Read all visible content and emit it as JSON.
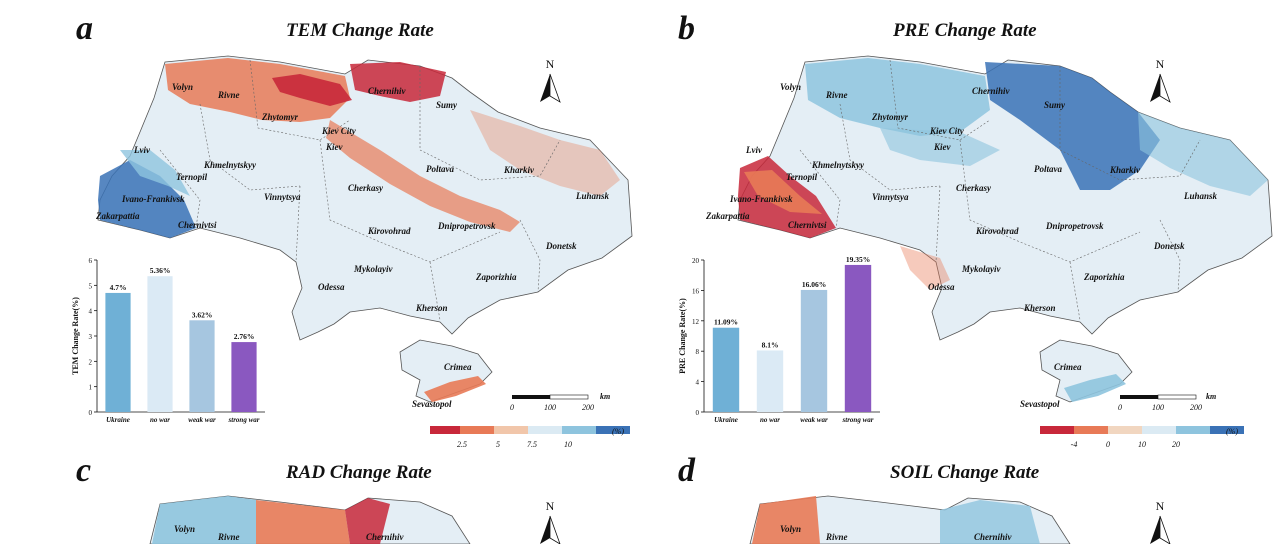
{
  "panels": [
    {
      "letter": "a",
      "title": "TEM Change Rate",
      "north": "N",
      "scale": {
        "unit": "km",
        "ticks": [
          "0",
          "100",
          "200"
        ]
      },
      "legend": {
        "unit": "(%)",
        "ticks": [
          "2.5",
          "5",
          "7.5",
          "10"
        ],
        "colors": [
          "#c8283a",
          "#e87a57",
          "#f1c6aa",
          "#dbeaf3",
          "#8ec4de",
          "#3a72b6"
        ]
      },
      "places": [
        "Volyn",
        "Rivne",
        "Zhytomyr",
        "Chernihiv",
        "Sumy",
        "Kiev City",
        "Kiev",
        "Lviv",
        "Khmelnytskyy",
        "Ternopil",
        "Poltava",
        "Kharkiv",
        "Ivano-Frankivsk",
        "Vinnytsya",
        "Cherkasy",
        "Luhansk",
        "Zakarpattia",
        "Chernivtsi",
        "Kirovohrad",
        "Dnipropetrovsk",
        "Donetsk",
        "Mykolayiv",
        "Zaporizhia",
        "Odessa",
        "Kherson",
        "Crimea",
        "Sevastopol"
      ]
    },
    {
      "letter": "b",
      "title": "PRE Change Rate",
      "north": "N",
      "scale": {
        "unit": "km",
        "ticks": [
          "0",
          "100",
          "200"
        ]
      },
      "legend": {
        "unit": "(%)",
        "ticks": [
          "-4",
          "0",
          "10",
          "20"
        ],
        "colors": [
          "#c8283a",
          "#e87a57",
          "#f1d6c0",
          "#dbeaf3",
          "#8ec4de",
          "#3a72b6"
        ]
      },
      "places": [
        "Volyn",
        "Rivne",
        "Zhytomyr",
        "Chernihiv",
        "Sumy",
        "Kiev City",
        "Kiev",
        "Lviv",
        "Khmelnytskyy",
        "Ternopil",
        "Poltava",
        "Kharkiv",
        "Ivano-Frankivsk",
        "Vinnytsya",
        "Cherkasy",
        "Luhansk",
        "Zakarpattia",
        "Chernivtsi",
        "Kirovohrad",
        "Dnipropetrovsk",
        "Donetsk",
        "Mykolayiv",
        "Zaporizhia",
        "Odessa",
        "Kherson",
        "Crimea",
        "Sevastopol"
      ]
    },
    {
      "letter": "c",
      "title": "RAD Change Rate",
      "north": "N",
      "places": [
        "Volyn",
        "Rivne",
        "Chernihiv"
      ]
    },
    {
      "letter": "d",
      "title": "SOIL Change Rate",
      "north": "N",
      "places": [
        "Volyn",
        "Rivne",
        "Chernihiv"
      ]
    }
  ],
  "chart_data": [
    {
      "type": "bar",
      "title": "",
      "xlabel": "",
      "ylabel": "TEM Change Rate(%)",
      "categories": [
        "Ukraine",
        "no war",
        "weak war",
        "strong war"
      ],
      "values": [
        4.7,
        5.36,
        3.62,
        2.76
      ],
      "data_labels": [
        "4.7%",
        "5.36%",
        "3.62%",
        "2.76%"
      ],
      "bar_colors": [
        "#6fb0d6",
        "#dbeaf5",
        "#a6c6e0",
        "#8a58c0"
      ],
      "ylim": [
        0,
        6
      ],
      "yticks": [
        "0",
        "1",
        "2",
        "3",
        "4",
        "5",
        "6"
      ]
    },
    {
      "type": "bar",
      "title": "",
      "xlabel": "",
      "ylabel": "PRE Change Rate(%)",
      "categories": [
        "Ukraine",
        "no war",
        "weak war",
        "strong war"
      ],
      "values": [
        11.09,
        8.1,
        16.06,
        19.35
      ],
      "data_labels": [
        "11.09%",
        "8.1%",
        "16.06%",
        "19.35%"
      ],
      "bar_colors": [
        "#6fb0d6",
        "#dbeaf5",
        "#a6c6e0",
        "#8a58c0"
      ],
      "ylim": [
        0,
        20
      ],
      "yticks": [
        "0",
        "4",
        "8",
        "12",
        "16",
        "20"
      ]
    }
  ]
}
